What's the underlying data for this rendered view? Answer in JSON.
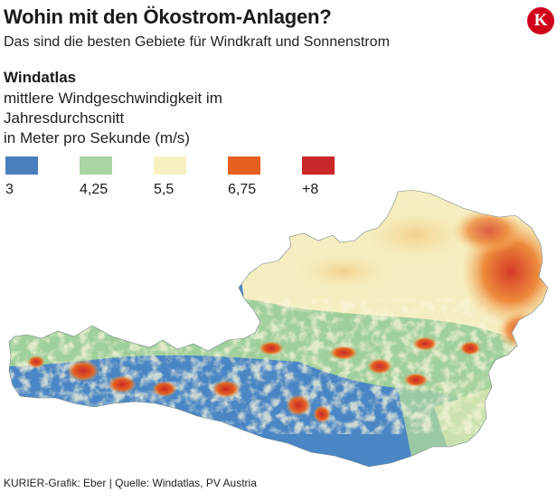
{
  "header": {
    "title": "Wohin mit den Ökostrom-Anlagen?",
    "subtitle": "Das sind die besten Gebiete für Windkraft und Sonnenstrom",
    "logo_letter": "K",
    "logo_color": "#d0021b"
  },
  "section": {
    "title": "Windatlas",
    "desc_line1": "mittlere Windgeschwindigkeit im",
    "desc_line2": "Jahresdurchscnitt",
    "desc_line3": "in Meter pro Sekunde (m/s)"
  },
  "legend": [
    {
      "label": "3",
      "color": "#4a7fbe"
    },
    {
      "label": "4,25",
      "color": "#a8d5a2"
    },
    {
      "label": "5,5",
      "color": "#f7f1c2"
    },
    {
      "label": "6,75",
      "color": "#e5601f"
    },
    {
      "label": "+8",
      "color": "#c8282a"
    }
  ],
  "footer": {
    "source": "KURIER-Grafik: Eber | Quelle: Windatlas, PV Austria"
  }
}
